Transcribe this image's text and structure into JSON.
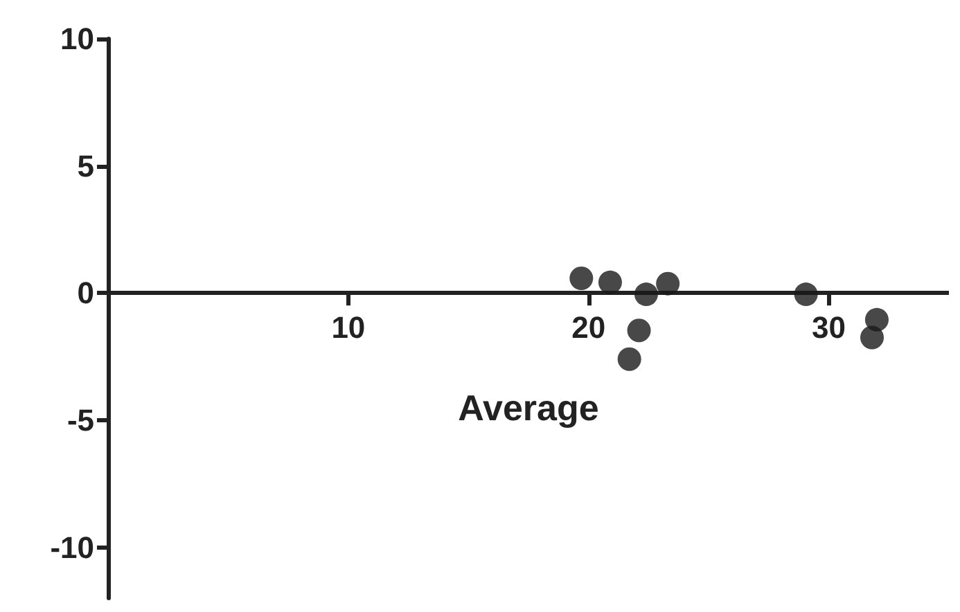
{
  "chart_data": {
    "type": "scatter",
    "xlabel": "Average",
    "x": [
      19.7,
      20.9,
      22.4,
      23.3,
      22.1,
      21.7,
      29.05,
      32.0,
      31.8
    ],
    "values": [
      0.58,
      0.42,
      -0.05,
      0.37,
      -1.47,
      -2.6,
      -0.05,
      -1.05,
      -1.75
    ],
    "color": "#1a1a1a",
    "marker": "circle",
    "xlim": [
      0,
      35
    ],
    "xticks": [
      10,
      20,
      30
    ],
    "ylim": [
      -12,
      10
    ],
    "yticks": [
      -10,
      -5,
      0,
      5,
      10
    ],
    "grid": false
  }
}
